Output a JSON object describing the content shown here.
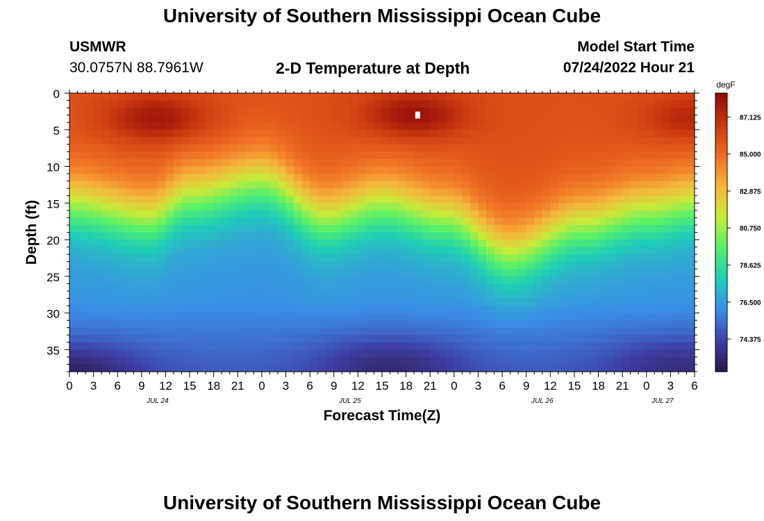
{
  "page": {
    "title_top": "University of Southern Mississippi Ocean Cube",
    "title_bottom": "University of Southern Mississippi Ocean Cube",
    "station": "USMWR",
    "coordinates": "30.0757N  88.7961W",
    "subtitle": "2-D Temperature at Depth",
    "model_start_label": "Model Start Time",
    "model_start_value": "07/24/2022 Hour 21"
  },
  "chart_data": {
    "type": "heatmap",
    "title": "2-D Temperature at Depth",
    "xlabel": "Forecast Time(Z)",
    "ylabel": "Depth (ft)",
    "x_unit": "forecast hour (Z)",
    "xlim": [
      0,
      78
    ],
    "ylim": [
      0,
      38
    ],
    "y_inverted": true,
    "y_ticks": [
      0,
      5,
      10,
      15,
      20,
      25,
      30,
      35
    ],
    "x_ticks": [
      {
        "pos": 0,
        "label": "0"
      },
      {
        "pos": 3,
        "label": "3"
      },
      {
        "pos": 6,
        "label": "6"
      },
      {
        "pos": 9,
        "label": "9"
      },
      {
        "pos": 12,
        "label": "12"
      },
      {
        "pos": 15,
        "label": "15"
      },
      {
        "pos": 18,
        "label": "18"
      },
      {
        "pos": 21,
        "label": "21"
      },
      {
        "pos": 24,
        "label": "0"
      },
      {
        "pos": 27,
        "label": "3"
      },
      {
        "pos": 30,
        "label": "6"
      },
      {
        "pos": 33,
        "label": "9"
      },
      {
        "pos": 36,
        "label": "12"
      },
      {
        "pos": 39,
        "label": "15"
      },
      {
        "pos": 42,
        "label": "18"
      },
      {
        "pos": 45,
        "label": "21"
      },
      {
        "pos": 48,
        "label": "0"
      },
      {
        "pos": 51,
        "label": "3"
      },
      {
        "pos": 54,
        "label": "6"
      },
      {
        "pos": 57,
        "label": "9"
      },
      {
        "pos": 60,
        "label": "12"
      },
      {
        "pos": 63,
        "label": "15"
      },
      {
        "pos": 66,
        "label": "18"
      },
      {
        "pos": 69,
        "label": "21"
      },
      {
        "pos": 72,
        "label": "0"
      },
      {
        "pos": 75,
        "label": "3"
      },
      {
        "pos": 78,
        "label": "6"
      }
    ],
    "date_labels": [
      {
        "pos": 11,
        "label": "JUL 24"
      },
      {
        "pos": 35,
        "label": "JUL 25"
      },
      {
        "pos": 59,
        "label": "JUL 26"
      },
      {
        "pos": 74,
        "label": "JUL 27"
      }
    ],
    "colorbar": {
      "unit": "degF",
      "min": 72.5,
      "max": 88.5,
      "ticks": [
        74.375,
        76.5,
        78.625,
        80.75,
        82.875,
        85.0,
        87.125
      ],
      "tick_labels": [
        "74.375",
        "76.500",
        "78.625",
        "80.750",
        "82.875",
        "85.000",
        "87.125"
      ],
      "colors": [
        "#2b1648",
        "#3f3fa6",
        "#3b8de6",
        "#1fcfb6",
        "#56f06a",
        "#c8ec3a",
        "#f5b73a",
        "#ee6a23",
        "#c9360f",
        "#8c0a06"
      ]
    },
    "thermocline_depth_ft": [
      {
        "hour": 0,
        "depth": 15
      },
      {
        "hour": 10,
        "depth": 17
      },
      {
        "hour": 15,
        "depth": 14
      },
      {
        "hour": 24,
        "depth": 12
      },
      {
        "hour": 32,
        "depth": 17
      },
      {
        "hour": 39,
        "depth": 15
      },
      {
        "hour": 47,
        "depth": 17
      },
      {
        "hour": 55,
        "depth": 22
      },
      {
        "hour": 64,
        "depth": 18
      },
      {
        "hour": 72,
        "depth": 16
      },
      {
        "hour": 78,
        "depth": 15
      }
    ],
    "warm_cores": [
      {
        "hour": 11,
        "depth": 3.5,
        "value": 88.0
      },
      {
        "hour": 43,
        "depth": 3.0,
        "value": 88.2
      },
      {
        "hour": 78,
        "depth": 3.5,
        "value": 87.5
      }
    ],
    "cold_pockets": [
      {
        "hour": 0,
        "depth": 38,
        "value": 73.0
      },
      {
        "hour": 40,
        "depth": 37,
        "value": 73.5
      },
      {
        "hour": 76,
        "depth": 37,
        "value": 73.8
      }
    ],
    "annotations": [
      {
        "type": "marker",
        "hour": 43.5,
        "depth": 3.0
      }
    ]
  }
}
